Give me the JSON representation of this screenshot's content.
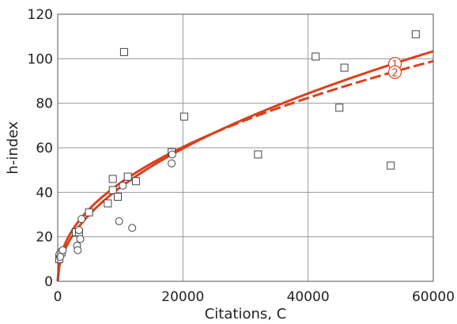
{
  "chart_data": {
    "type": "scatter",
    "title": "",
    "xlabel": "Citations, C",
    "ylabel": "h-index",
    "xlim": [
      0,
      60000
    ],
    "ylim": [
      0,
      120
    ],
    "x_ticks": [
      0,
      20000,
      40000,
      60000
    ],
    "y_ticks": [
      0,
      20,
      40,
      60,
      80,
      100,
      120
    ],
    "grid": true,
    "series": [
      {
        "marker": "square",
        "points": [
          [
            250,
            10
          ],
          [
            600,
            13
          ],
          [
            2900,
            22
          ],
          [
            3400,
            22
          ],
          [
            5000,
            31
          ],
          [
            8000,
            35
          ],
          [
            8800,
            41
          ],
          [
            8800,
            46
          ],
          [
            9600,
            38
          ],
          [
            10600,
            103
          ],
          [
            11200,
            47
          ],
          [
            12500,
            45
          ],
          [
            18200,
            58
          ],
          [
            20200,
            74
          ],
          [
            32000,
            57
          ],
          [
            41200,
            101
          ],
          [
            45000,
            78
          ],
          [
            45800,
            96
          ],
          [
            53200,
            52
          ],
          [
            57200,
            111
          ]
        ]
      },
      {
        "marker": "circle",
        "points": [
          [
            250,
            12
          ],
          [
            400,
            11
          ],
          [
            800,
            14
          ],
          [
            3100,
            16
          ],
          [
            3200,
            14
          ],
          [
            3400,
            23
          ],
          [
            3600,
            19
          ],
          [
            3800,
            28
          ],
          [
            9800,
            27
          ],
          [
            10400,
            43
          ],
          [
            11900,
            24
          ],
          [
            18200,
            53
          ],
          [
            18300,
            57
          ]
        ]
      }
    ],
    "fits": [
      {
        "label": "1",
        "style": "solid",
        "color": "#d9411e",
        "coef": 0.422,
        "exponent": 0.5
      },
      {
        "label": "2",
        "style": "dashed",
        "color": "#d9411e",
        "coef": 0.7,
        "exponent": 0.45,
        "solid_until": 25000
      }
    ]
  }
}
